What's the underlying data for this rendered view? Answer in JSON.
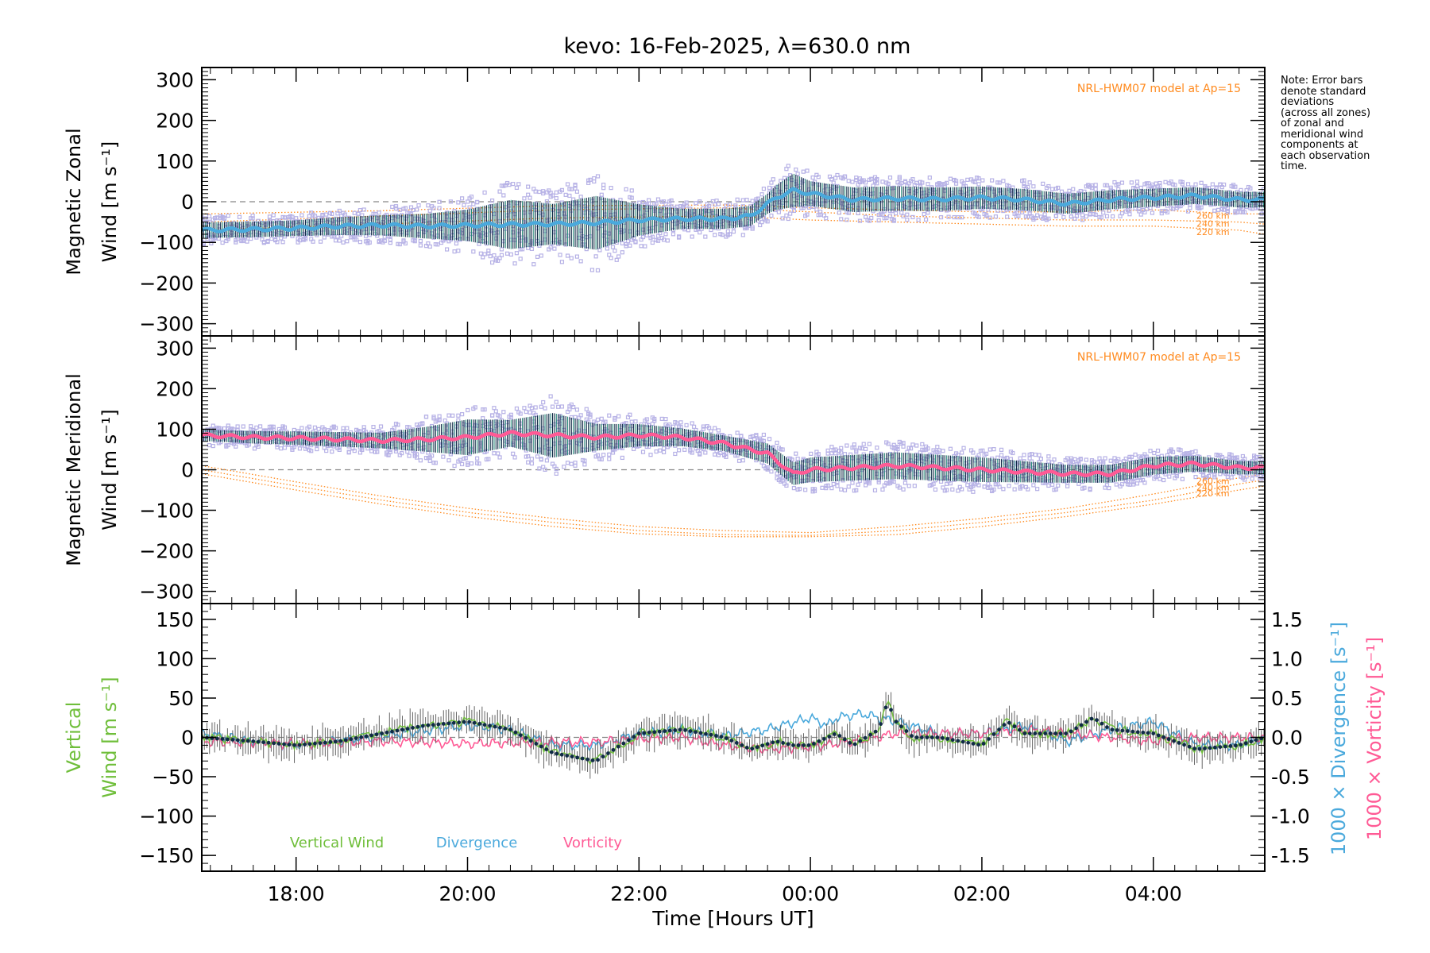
{
  "title": "kevo: 16-Feb-2025, λ=630.0 nm",
  "note_lines": [
    "Note: Error bars",
    "denote standard",
    "deviations",
    "(across all zones)",
    "of zonal and",
    "meridional wind",
    "components at",
    "each observation",
    "time."
  ],
  "colors": {
    "model": "#ff8a1e",
    "zonal_mean": "#4aa9dc",
    "meridional_mean": "#ff5a95",
    "zone_scatter": "#b7b2e6",
    "error_bar": "#0f2a45",
    "vertical": "#6fbe3a",
    "divergence": "#4aa9dc",
    "vorticity": "#ff5a95",
    "zero_line": "#888888"
  },
  "chart_data": [
    {
      "type": "line",
      "panel": "zonal",
      "ylabel_line1": "Magnetic Zonal",
      "ylabel_line2": "Wind [m s⁻¹]",
      "ylim": [
        -330,
        330
      ],
      "yticks": [
        -300,
        -200,
        -100,
        0,
        100,
        200,
        300
      ],
      "xlim": [
        -7.1,
        5.3
      ],
      "model_label": "NRL-HWM07 model at Ap=15",
      "model_altitudes": [
        "260 km",
        "240 km",
        "220 km"
      ],
      "mean": {
        "x": [
          -7.1,
          -6.5,
          -6,
          -5.5,
          -5,
          -4.5,
          -4,
          -3.5,
          -3,
          -2.5,
          -2,
          -1.5,
          -1,
          -0.7,
          -0.4,
          -0.2,
          0,
          0.5,
          1,
          1.5,
          2,
          2.5,
          3,
          3.5,
          4,
          4.5,
          5,
          5.3
        ],
        "y": [
          -70,
          -68,
          -65,
          -60,
          -58,
          -60,
          -58,
          -56,
          -55,
          -52,
          -45,
          -42,
          -42,
          -35,
          10,
          28,
          20,
          5,
          8,
          6,
          10,
          5,
          -5,
          5,
          10,
          15,
          5,
          5
        ]
      },
      "spread": {
        "x": [
          -7.1,
          -6,
          -5,
          -4.5,
          -4,
          -3.5,
          -3,
          -2.5,
          -2,
          -1.5,
          -1,
          -0.5,
          -0.2,
          0,
          1,
          2,
          3,
          4,
          5,
          5.3
        ],
        "y": [
          35,
          35,
          45,
          55,
          70,
          110,
          90,
          120,
          70,
          45,
          45,
          45,
          75,
          55,
          55,
          50,
          45,
          40,
          35,
          35
        ]
      },
      "model": [
        {
          "label": "260 km",
          "x": [
            -7.1,
            -5,
            -3,
            -1,
            0,
            1,
            2,
            3,
            4,
            5,
            5.3
          ],
          "y": [
            -30,
            -22,
            -10,
            -8,
            -15,
            -20,
            -25,
            -25,
            -20,
            -30,
            -30
          ]
        },
        {
          "label": "240 km",
          "x": [
            -7.1,
            -5,
            -3,
            -1,
            0,
            1,
            2,
            3,
            4,
            5,
            5.3
          ],
          "y": [
            -50,
            -35,
            -20,
            -15,
            -25,
            -35,
            -40,
            -45,
            -45,
            -50,
            -55
          ]
        },
        {
          "label": "220 km",
          "x": [
            -7.1,
            -5,
            -3,
            -1,
            0,
            1,
            2,
            3,
            4,
            5,
            5.3
          ],
          "y": [
            -70,
            -55,
            -40,
            -35,
            -45,
            -50,
            -55,
            -60,
            -60,
            -70,
            -80
          ]
        }
      ]
    },
    {
      "type": "line",
      "panel": "meridional",
      "ylabel_line1": "Magnetic Meridional",
      "ylabel_line2": "Wind [m s⁻¹]",
      "ylim": [
        -330,
        330
      ],
      "yticks": [
        -300,
        -200,
        -100,
        0,
        100,
        200,
        300
      ],
      "xlim": [
        -7.1,
        5.3
      ],
      "model_label": "NRL-HWM07 model at Ap=15",
      "model_altitudes": [
        "260 km",
        "240 km",
        "220 km"
      ],
      "mean": {
        "x": [
          -7.1,
          -6.5,
          -6,
          -5.5,
          -5,
          -4.5,
          -4,
          -3.5,
          -3,
          -2.5,
          -2,
          -1.5,
          -1,
          -0.5,
          -0.2,
          0,
          0.5,
          1,
          1.5,
          2,
          2.5,
          3,
          3.5,
          4,
          4.5,
          5,
          5.3
        ],
        "y": [
          85,
          80,
          78,
          75,
          72,
          75,
          80,
          90,
          85,
          80,
          85,
          80,
          65,
          40,
          -10,
          0,
          5,
          10,
          5,
          0,
          -5,
          -10,
          -10,
          10,
          15,
          5,
          5
        ]
      },
      "spread": {
        "x": [
          -7.1,
          -6,
          -5,
          -4.5,
          -4,
          -3.5,
          -3,
          -2.5,
          -2,
          -1.5,
          -1,
          -0.5,
          0,
          1,
          2,
          3,
          4,
          5,
          5.3
        ],
        "y": [
          25,
          30,
          35,
          55,
          80,
          60,
          100,
          60,
          50,
          40,
          35,
          45,
          55,
          60,
          55,
          40,
          40,
          30,
          30
        ]
      },
      "model": [
        {
          "label": "260 km",
          "x": [
            -7.1,
            -6,
            -5,
            -4,
            -3,
            -2,
            -1,
            0,
            1,
            2,
            3,
            4,
            5,
            5.3
          ],
          "y": [
            10,
            -30,
            -65,
            -95,
            -120,
            -140,
            -150,
            -155,
            -140,
            -120,
            -95,
            -60,
            -20,
            -10
          ]
        },
        {
          "label": "240 km",
          "x": [
            -7.1,
            -6,
            -5,
            -4,
            -3,
            -2,
            -1,
            0,
            1,
            2,
            3,
            4,
            5,
            5.3
          ],
          "y": [
            0,
            -40,
            -75,
            -105,
            -130,
            -150,
            -160,
            -162,
            -150,
            -130,
            -105,
            -75,
            -35,
            -25
          ]
        },
        {
          "label": "220 km",
          "x": [
            -7.1,
            -6,
            -5,
            -4,
            -3,
            -2,
            -1,
            0,
            1,
            2,
            3,
            4,
            5,
            5.3
          ],
          "y": [
            -10,
            -50,
            -85,
            -115,
            -140,
            -158,
            -165,
            -165,
            -160,
            -140,
            -115,
            -85,
            -50,
            -40
          ]
        }
      ]
    },
    {
      "type": "line",
      "panel": "vertical",
      "ylabel_line1": "Vertical",
      "ylabel_line2": "Wind [m s⁻¹]",
      "ylim": [
        -170,
        170
      ],
      "yticks": [
        -150,
        -100,
        -50,
        0,
        50,
        100,
        150
      ],
      "xlim": [
        -7.1,
        5.3
      ],
      "xticks": [
        -6,
        -4,
        -2,
        0,
        2,
        4
      ],
      "xticklabels": [
        "18:00",
        "20:00",
        "22:00",
        "00:00",
        "02:00",
        "04:00"
      ],
      "xlabel": "Time [Hours UT]",
      "y2lim": [
        -1.7,
        1.7
      ],
      "y2ticks": [
        -1.5,
        -1.0,
        -0.5,
        0.0,
        0.5,
        1.0,
        1.5
      ],
      "y2label_divergence": "1000 × Divergence [s⁻¹]",
      "y2label_vorticity": "1000 × Vorticity [s⁻¹]",
      "legend": [
        "Vertical Wind",
        "Divergence",
        "Vorticity"
      ],
      "series": [
        {
          "name": "Vertical Wind",
          "x": [
            -7.1,
            -6.5,
            -6,
            -5.5,
            -5,
            -4.5,
            -4,
            -3.5,
            -3,
            -2.5,
            -2,
            -1.5,
            -1,
            -0.7,
            -0.4,
            -0.2,
            0,
            0.3,
            0.5,
            0.8,
            0.9,
            1,
            1.2,
            1.5,
            2,
            2.3,
            2.5,
            3,
            3.3,
            3.5,
            4,
            4.5,
            5,
            5.3
          ],
          "y": [
            0,
            -5,
            -10,
            -5,
            5,
            15,
            20,
            10,
            -20,
            -30,
            5,
            10,
            0,
            -15,
            -5,
            -10,
            -10,
            5,
            -10,
            10,
            45,
            20,
            0,
            0,
            -10,
            20,
            5,
            5,
            25,
            10,
            5,
            -15,
            -10,
            0
          ]
        },
        {
          "name": "Divergence",
          "x": [
            -7.1,
            -6.5,
            -6,
            -5,
            -4,
            -3.5,
            -3,
            -2.5,
            -2,
            -1.5,
            -1,
            -0.5,
            0,
            0.2,
            0.3,
            0.6,
            1,
            1.5,
            2,
            2.5,
            3,
            3.5,
            4,
            4.5,
            5,
            5.3
          ],
          "y": [
            0.05,
            -0.05,
            -0.1,
            0.02,
            0.15,
            0.1,
            -0.1,
            -0.1,
            0.05,
            0.1,
            0.02,
            0.1,
            0.25,
            0.15,
            0.25,
            0.3,
            0.2,
            0.05,
            0.05,
            0.15,
            -0.05,
            0.1,
            0.2,
            -0.1,
            -0.1,
            0.0
          ]
        },
        {
          "name": "Vorticity",
          "x": [
            -7.1,
            -6,
            -5,
            -4,
            -3,
            -2.5,
            -2,
            -1.5,
            -1,
            -0.5,
            0,
            0.5,
            1,
            1.5,
            2,
            2.5,
            3,
            3.5,
            4,
            4.5,
            5,
            5.3
          ],
          "y": [
            -0.05,
            -0.08,
            -0.05,
            -0.08,
            -0.06,
            -0.06,
            -0.02,
            0.0,
            -0.1,
            -0.15,
            -0.12,
            -0.05,
            0.05,
            0.05,
            0.05,
            0.1,
            0.05,
            0.0,
            -0.05,
            0.0,
            0.0,
            0.0
          ]
        }
      ]
    }
  ]
}
